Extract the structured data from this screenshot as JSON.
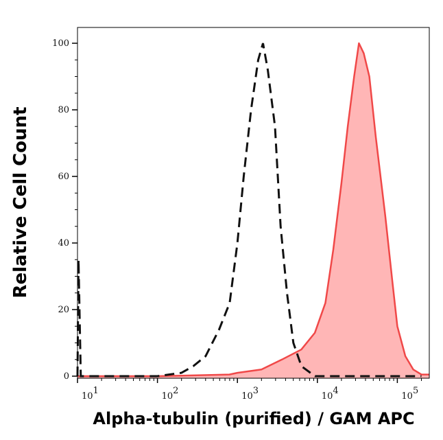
{
  "chart_data": {
    "type": "area",
    "title": "",
    "xlabel": "Alpha-tubulin (purified) / GAM APC",
    "ylabel": "Relative Cell Count",
    "x_scale": "log",
    "xlim": [
      10,
      251000
    ],
    "ylim": [
      0,
      105
    ],
    "x_ticks": [
      {
        "value": 10,
        "base": "10",
        "exp": "1"
      },
      {
        "value": 100,
        "base": "10",
        "exp": "2"
      },
      {
        "value": 1000,
        "base": "10",
        "exp": "3"
      },
      {
        "value": 10000,
        "base": "10",
        "exp": "4"
      },
      {
        "value": 100000,
        "base": "10",
        "exp": "5"
      }
    ],
    "y_ticks": [
      0,
      20,
      40,
      60,
      80,
      100
    ],
    "grid": false,
    "legend": "none",
    "series": [
      {
        "style": "filled",
        "color": "#f04848",
        "fill": "#ffb6b6",
        "x": [
          10,
          100,
          794,
          1000,
          2000,
          3600,
          6300,
          9300,
          12600,
          15800,
          20000,
          24000,
          28800,
          33100,
          38000,
          44700,
          53700,
          70800,
          87100,
          100000,
          126000,
          158000,
          200000,
          251000
        ],
        "y": [
          0,
          0,
          0.5,
          1,
          2,
          5,
          8,
          13,
          22,
          38,
          58,
          75,
          90,
          100,
          97,
          90,
          72,
          48,
          28,
          15,
          6,
          2,
          0.5,
          0.5
        ]
      },
      {
        "style": "dashed",
        "color": "#111111",
        "x": [
          10,
          10.3,
          11,
          100,
          200,
          280,
          400,
          590,
          800,
          1000,
          1200,
          1480,
          1820,
          2090,
          2400,
          2950,
          3470,
          4170,
          5010,
          6310,
          9330,
          200000
        ],
        "y": [
          0,
          35,
          0,
          0,
          1,
          3,
          6,
          14,
          22,
          40,
          60,
          80,
          95,
          100,
          92,
          75,
          45,
          25,
          10,
          3,
          0,
          0
        ]
      }
    ]
  }
}
